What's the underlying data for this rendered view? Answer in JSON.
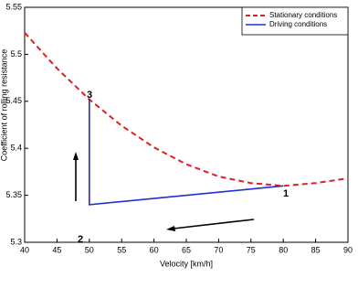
{
  "chart_data": {
    "type": "line",
    "xlabel": "Velocity [km/h]",
    "ylabel": "Coefficient of rolling resistance",
    "xlim": [
      40,
      90
    ],
    "xticks": [
      40,
      45,
      50,
      55,
      60,
      65,
      70,
      75,
      80,
      85,
      90
    ],
    "ylim": [
      5.3,
      5.55
    ],
    "yticks": [
      5.3,
      5.35,
      5.4,
      5.45,
      5.5,
      5.55
    ],
    "grid": false,
    "legend": "upper-right",
    "series": [
      {
        "name": "Stationary conditions",
        "color": "#e02020",
        "dashed": true,
        "x": [
          40,
          45,
          50,
          55,
          60,
          65,
          70,
          75,
          80,
          85,
          90
        ],
        "values": [
          5.523,
          5.485,
          5.452,
          5.424,
          5.401,
          5.383,
          5.37,
          5.363,
          5.36,
          5.363,
          5.368
        ]
      },
      {
        "name": "Driving conditions",
        "color": "#2030d0",
        "dashed": false,
        "x": [
          80,
          50,
          50,
          50
        ],
        "values": [
          5.36,
          5.34,
          5.365,
          5.453
        ]
      }
    ],
    "annotations": [
      "1",
      "2",
      "3"
    ]
  }
}
